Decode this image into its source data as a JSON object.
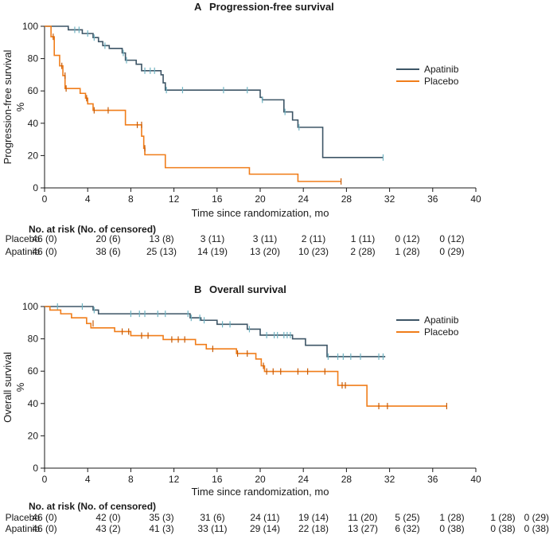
{
  "colors": {
    "apatinib": "#3d5566",
    "placebo": "#f07d1a",
    "apatinib_censor": "#6fb3c2",
    "placebo_censor": "#c65a06"
  },
  "chart_data": [
    {
      "type": "line",
      "subtype": "kaplan-meier",
      "panel_letter": "A",
      "title": "Progression-free survival",
      "ylabel_lines": [
        "Progression-free survival",
        "%"
      ],
      "xlabel": "Time since randomization, mo",
      "xlim": [
        0,
        40
      ],
      "ylim": [
        0,
        100
      ],
      "xticks": [
        "0",
        "4",
        "8",
        "12",
        "16",
        "20",
        "24",
        "28",
        "32",
        "36",
        "40"
      ],
      "yticks": [
        "0",
        "20",
        "40",
        "60",
        "80",
        "100"
      ],
      "legend_position": "right",
      "series": [
        {
          "name": "Apatinib",
          "color_key": "apatinib",
          "steps": [
            [
              0,
              100
            ],
            [
              2.2,
              97.8
            ],
            [
              3.5,
              95.5
            ],
            [
              4.5,
              93
            ],
            [
              5.0,
              90.5
            ],
            [
              5.4,
              88
            ],
            [
              6.0,
              86.3
            ],
            [
              7.2,
              83.5
            ],
            [
              7.5,
              79
            ],
            [
              8.5,
              76.5
            ],
            [
              9.0,
              72.5
            ],
            [
              10.8,
              70
            ],
            [
              11.0,
              65
            ],
            [
              11.2,
              60.5
            ],
            [
              20.0,
              56
            ],
            [
              20.2,
              54.5
            ],
            [
              22.2,
              47
            ],
            [
              23.0,
              42
            ],
            [
              23.5,
              37.5
            ],
            [
              25.8,
              18.8
            ],
            [
              31.4,
              18.8
            ]
          ],
          "censored": [
            [
              2.8,
              97.8
            ],
            [
              3.2,
              97.8
            ],
            [
              4.0,
              95.5
            ],
            [
              4.6,
              93
            ],
            [
              5.6,
              88
            ],
            [
              7.3,
              83.5
            ],
            [
              7.6,
              79
            ],
            [
              9.3,
              72.5
            ],
            [
              9.8,
              72.5
            ],
            [
              10.2,
              72.5
            ],
            [
              11.3,
              60.5
            ],
            [
              12.8,
              60.5
            ],
            [
              16.6,
              60.5
            ],
            [
              18.8,
              60.5
            ],
            [
              20.2,
              54.5
            ],
            [
              22.3,
              47
            ],
            [
              23.6,
              37.5
            ],
            [
              31.4,
              18.8
            ]
          ]
        },
        {
          "name": "Placebo",
          "color_key": "placebo",
          "steps": [
            [
              0,
              100
            ],
            [
              0.6,
              93.5
            ],
            [
              0.9,
              82
            ],
            [
              1.4,
              75.5
            ],
            [
              1.7,
              69.5
            ],
            [
              1.9,
              61.5
            ],
            [
              3.3,
              58.5
            ],
            [
              3.8,
              55.5
            ],
            [
              4.0,
              52
            ],
            [
              4.5,
              48
            ],
            [
              7.5,
              39
            ],
            [
              9.0,
              32
            ],
            [
              9.2,
              24.5
            ],
            [
              9.3,
              20.5
            ],
            [
              11.2,
              12.5
            ],
            [
              19.0,
              8.5
            ],
            [
              23.5,
              4.0
            ],
            [
              27.5,
              4.0
            ]
          ],
          "censored": [
            [
              0.8,
              93.5
            ],
            [
              1.6,
              75.5
            ],
            [
              1.9,
              69.5
            ],
            [
              2.0,
              61.5
            ],
            [
              3.9,
              55.5
            ],
            [
              4.6,
              48
            ],
            [
              5.9,
              48
            ],
            [
              8.6,
              39
            ],
            [
              9.0,
              39
            ],
            [
              9.3,
              24.5
            ],
            [
              27.5,
              4.0
            ]
          ]
        }
      ],
      "risk_table": {
        "header": "No. at risk (No. of censored)",
        "rows": [
          {
            "label": "Placebo",
            "values": [
              "46 (0)",
              "20 (6)",
              "13 (8)",
              "3 (11)",
              "3 (11)",
              "2 (11)",
              "1 (11)",
              "0 (12)",
              "0 (12)"
            ]
          },
          {
            "label": "Apatinib",
            "values": [
              "46 (0)",
              "38 (6)",
              "25 (13)",
              "14 (19)",
              "13 (20)",
              "10 (23)",
              "2 (28)",
              "1 (28)",
              "0 (29)"
            ]
          }
        ]
      }
    },
    {
      "type": "line",
      "subtype": "kaplan-meier",
      "panel_letter": "B",
      "title": "Overall survival",
      "ylabel_lines": [
        "Overall survival",
        "%"
      ],
      "xlabel": "Time since randomization, mo",
      "xlim": [
        0,
        40
      ],
      "ylim": [
        0,
        100
      ],
      "xticks": [
        "0",
        "4",
        "8",
        "12",
        "16",
        "20",
        "24",
        "28",
        "32",
        "36",
        "40"
      ],
      "yticks": [
        "0",
        "20",
        "40",
        "60",
        "80",
        "100"
      ],
      "legend_position": "right",
      "series": [
        {
          "name": "Apatinib",
          "color_key": "apatinib",
          "steps": [
            [
              0,
              100
            ],
            [
              4.5,
              97.8
            ],
            [
              5.0,
              95.5
            ],
            [
              13.5,
              93
            ],
            [
              14.5,
              91.5
            ],
            [
              16.0,
              89
            ],
            [
              18.8,
              86
            ],
            [
              20.0,
              82.3
            ],
            [
              23.0,
              80
            ],
            [
              24.2,
              76
            ],
            [
              26.2,
              69
            ],
            [
              31.6,
              69
            ]
          ],
          "censored": [
            [
              1.2,
              100
            ],
            [
              3.5,
              100
            ],
            [
              4.6,
              97.8
            ],
            [
              8.0,
              95.5
            ],
            [
              8.8,
              95.5
            ],
            [
              9.3,
              95.5
            ],
            [
              10.5,
              95.5
            ],
            [
              11.2,
              95.5
            ],
            [
              13.3,
              95.5
            ],
            [
              13.6,
              93
            ],
            [
              14.4,
              93
            ],
            [
              14.8,
              91.5
            ],
            [
              16.5,
              89
            ],
            [
              17.2,
              89
            ],
            [
              19.0,
              86
            ],
            [
              20.6,
              82.3
            ],
            [
              21.3,
              82.3
            ],
            [
              21.6,
              82.3
            ],
            [
              22.2,
              82.3
            ],
            [
              22.5,
              82.3
            ],
            [
              22.8,
              82.3
            ],
            [
              26.3,
              69
            ],
            [
              27.2,
              69
            ],
            [
              27.7,
              69
            ],
            [
              28.4,
              69
            ],
            [
              29.3,
              69
            ],
            [
              31.0,
              69
            ],
            [
              31.4,
              69
            ]
          ]
        },
        {
          "name": "Placebo",
          "color_key": "placebo",
          "steps": [
            [
              0,
              100
            ],
            [
              0.5,
              97.8
            ],
            [
              1.5,
              95.5
            ],
            [
              2.5,
              93
            ],
            [
              3.9,
              89.5
            ],
            [
              4.3,
              86.8
            ],
            [
              6.5,
              84.5
            ],
            [
              8.0,
              82
            ],
            [
              11.0,
              79.6
            ],
            [
              14.0,
              76.5
            ],
            [
              15.0,
              73.8
            ],
            [
              17.8,
              70.9
            ],
            [
              19.6,
              67.5
            ],
            [
              20.1,
              63.3
            ],
            [
              20.4,
              59.8
            ],
            [
              26.0,
              59.8
            ],
            [
              27.2,
              51.2
            ],
            [
              29.9,
              38.4
            ],
            [
              37.3,
              38.4
            ]
          ],
          "censored": [
            [
              4.5,
              89.5
            ],
            [
              7.2,
              84.5
            ],
            [
              7.8,
              84.5
            ],
            [
              9.0,
              82
            ],
            [
              9.6,
              82
            ],
            [
              11.8,
              79.6
            ],
            [
              12.4,
              79.6
            ],
            [
              13.0,
              79.6
            ],
            [
              15.6,
              73.8
            ],
            [
              17.9,
              70.9
            ],
            [
              18.8,
              70.9
            ],
            [
              20.3,
              63.3
            ],
            [
              20.6,
              59.8
            ],
            [
              21.2,
              59.8
            ],
            [
              21.9,
              59.8
            ],
            [
              23.5,
              59.8
            ],
            [
              24.4,
              59.8
            ],
            [
              26.0,
              59.8
            ],
            [
              27.6,
              51.2
            ],
            [
              27.9,
              51.2
            ],
            [
              31.0,
              38.4
            ],
            [
              31.8,
              38.4
            ],
            [
              37.3,
              38.4
            ]
          ]
        }
      ],
      "risk_table": {
        "header": "No. at risk (No. of censored)",
        "rows": [
          {
            "label": "Placebo",
            "values": [
              "46 (0)",
              "42 (0)",
              "35 (3)",
              "31 (6)",
              "24 (11)",
              "19 (14)",
              "11 (20)",
              "5 (25)",
              "1 (28)",
              "1 (28)",
              "0 (29)"
            ]
          },
          {
            "label": "Apatinib",
            "values": [
              "46 (0)",
              "43 (2)",
              "41 (3)",
              "33 (11)",
              "29 (14)",
              "22 (18)",
              "13 (27)",
              "6 (32)",
              "0 (38)",
              "0 (38)",
              "0 (38)"
            ]
          }
        ]
      }
    }
  ]
}
